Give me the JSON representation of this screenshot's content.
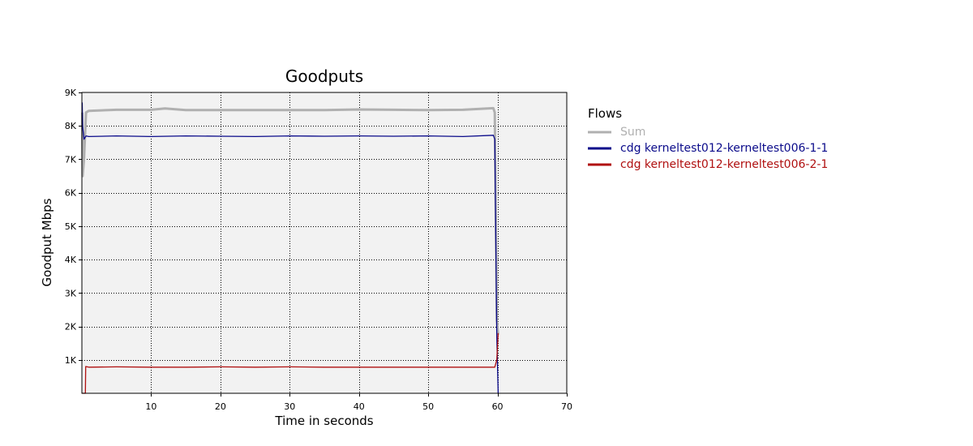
{
  "chart_data": {
    "type": "line",
    "title": "Goodputs",
    "xlabel": "Time in seconds",
    "ylabel": "Goodput Mbps",
    "xlim": [
      0,
      70
    ],
    "ylim": [
      0,
      9000
    ],
    "x_ticks": [
      10,
      20,
      30,
      40,
      50,
      60,
      70
    ],
    "x_tick_labels": [
      "10",
      "20",
      "30",
      "40",
      "50",
      "60",
      "70"
    ],
    "y_ticks": [
      1000,
      2000,
      3000,
      4000,
      5000,
      6000,
      7000,
      8000,
      9000
    ],
    "y_tick_labels": [
      "1K",
      "2K",
      "3K",
      "4K",
      "5K",
      "6K",
      "7K",
      "8K",
      "9K"
    ],
    "grid": true,
    "legend": {
      "title": "Flows",
      "placement": "right"
    },
    "series": [
      {
        "name": "Sum",
        "color": "#b0b0b0",
        "points": [
          [
            0.05,
            8400
          ],
          [
            0.1,
            6500
          ],
          [
            0.3,
            7000
          ],
          [
            0.6,
            8400
          ],
          [
            1,
            8450
          ],
          [
            5,
            8480
          ],
          [
            10,
            8480
          ],
          [
            12,
            8520
          ],
          [
            15,
            8470
          ],
          [
            20,
            8470
          ],
          [
            25,
            8470
          ],
          [
            30,
            8470
          ],
          [
            35,
            8470
          ],
          [
            40,
            8490
          ],
          [
            45,
            8480
          ],
          [
            50,
            8470
          ],
          [
            55,
            8480
          ],
          [
            59.4,
            8530
          ],
          [
            59.6,
            8400
          ],
          [
            59.9,
            2200
          ],
          [
            60.1,
            1750
          ]
        ]
      },
      {
        "name": "cdg kerneltest012-kerneltest006-1-1",
        "color": "#0a0a8a",
        "points": [
          [
            0.05,
            8700
          ],
          [
            0.1,
            8000
          ],
          [
            0.3,
            7600
          ],
          [
            0.6,
            7700
          ],
          [
            1,
            7680
          ],
          [
            5,
            7700
          ],
          [
            10,
            7680
          ],
          [
            15,
            7700
          ],
          [
            20,
            7690
          ],
          [
            25,
            7680
          ],
          [
            30,
            7700
          ],
          [
            35,
            7690
          ],
          [
            40,
            7700
          ],
          [
            45,
            7690
          ],
          [
            50,
            7700
          ],
          [
            55,
            7680
          ],
          [
            59.4,
            7720
          ],
          [
            59.6,
            7600
          ],
          [
            59.9,
            1700
          ],
          [
            60.1,
            0
          ]
        ]
      },
      {
        "name": "cdg kerneltest012-kerneltest006-2-1",
        "color": "#b01010",
        "points": [
          [
            0.05,
            0
          ],
          [
            0.5,
            0
          ],
          [
            0.55,
            800
          ],
          [
            1,
            780
          ],
          [
            5,
            790
          ],
          [
            10,
            780
          ],
          [
            15,
            780
          ],
          [
            20,
            790
          ],
          [
            25,
            780
          ],
          [
            30,
            790
          ],
          [
            35,
            780
          ],
          [
            40,
            780
          ],
          [
            45,
            780
          ],
          [
            50,
            780
          ],
          [
            55,
            780
          ],
          [
            59.4,
            780
          ],
          [
            59.6,
            780
          ],
          [
            59.9,
            1000
          ],
          [
            60.1,
            1800
          ]
        ]
      }
    ]
  }
}
